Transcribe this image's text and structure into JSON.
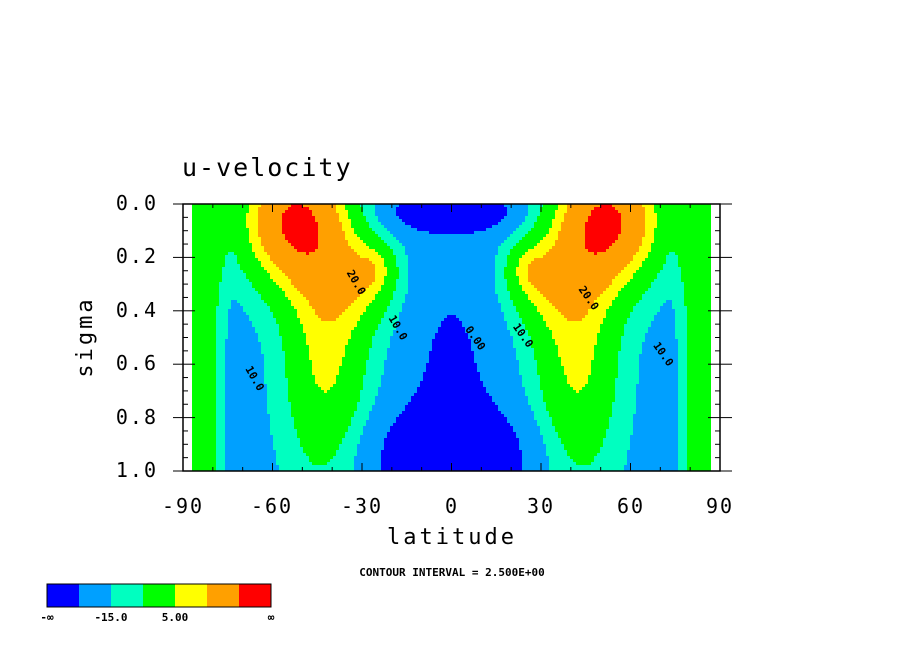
{
  "chart_data": {
    "type": "contour",
    "title": "u-velocity",
    "xlabel": "latitude",
    "ylabel": "sigma",
    "xlim": [
      -90,
      90
    ],
    "ylim": [
      1.0,
      0.0
    ],
    "x_ticks": [
      "-90",
      "-60",
      "-30",
      "0",
      "30",
      "60",
      "90"
    ],
    "y_ticks": [
      "0.0",
      "0.2",
      "0.4",
      "0.6",
      "0.8",
      "1.0"
    ],
    "contour_interval_text": "CONTOUR INTERVAL = 2.500E+00",
    "contour_labels": [
      {
        "text": "20.0",
        "lat": -33,
        "sigma": 0.3
      },
      {
        "text": "10.0",
        "lat": -19,
        "sigma": 0.47
      },
      {
        "text": "10.0",
        "lat": -67,
        "sigma": 0.66
      },
      {
        "text": "0.00",
        "lat": 7,
        "sigma": 0.51
      },
      {
        "text": "10.0",
        "lat": 23,
        "sigma": 0.5
      },
      {
        "text": "20.0",
        "lat": 45,
        "sigma": 0.36
      },
      {
        "text": "10.0",
        "lat": 70,
        "sigma": 0.57
      }
    ],
    "jet_maxima": [
      {
        "lat": -55,
        "sigma": 0.08
      },
      {
        "lat": 55,
        "sigma": 0.08
      }
    ],
    "colorbar": {
      "colors": [
        "#0000ff",
        "#00a0ff",
        "#00ffc0",
        "#00ff00",
        "#ffff00",
        "#ffa000",
        "#ff0000"
      ],
      "labels": [
        "-∞",
        "-15.0",
        "5.00",
        "∞"
      ]
    }
  }
}
